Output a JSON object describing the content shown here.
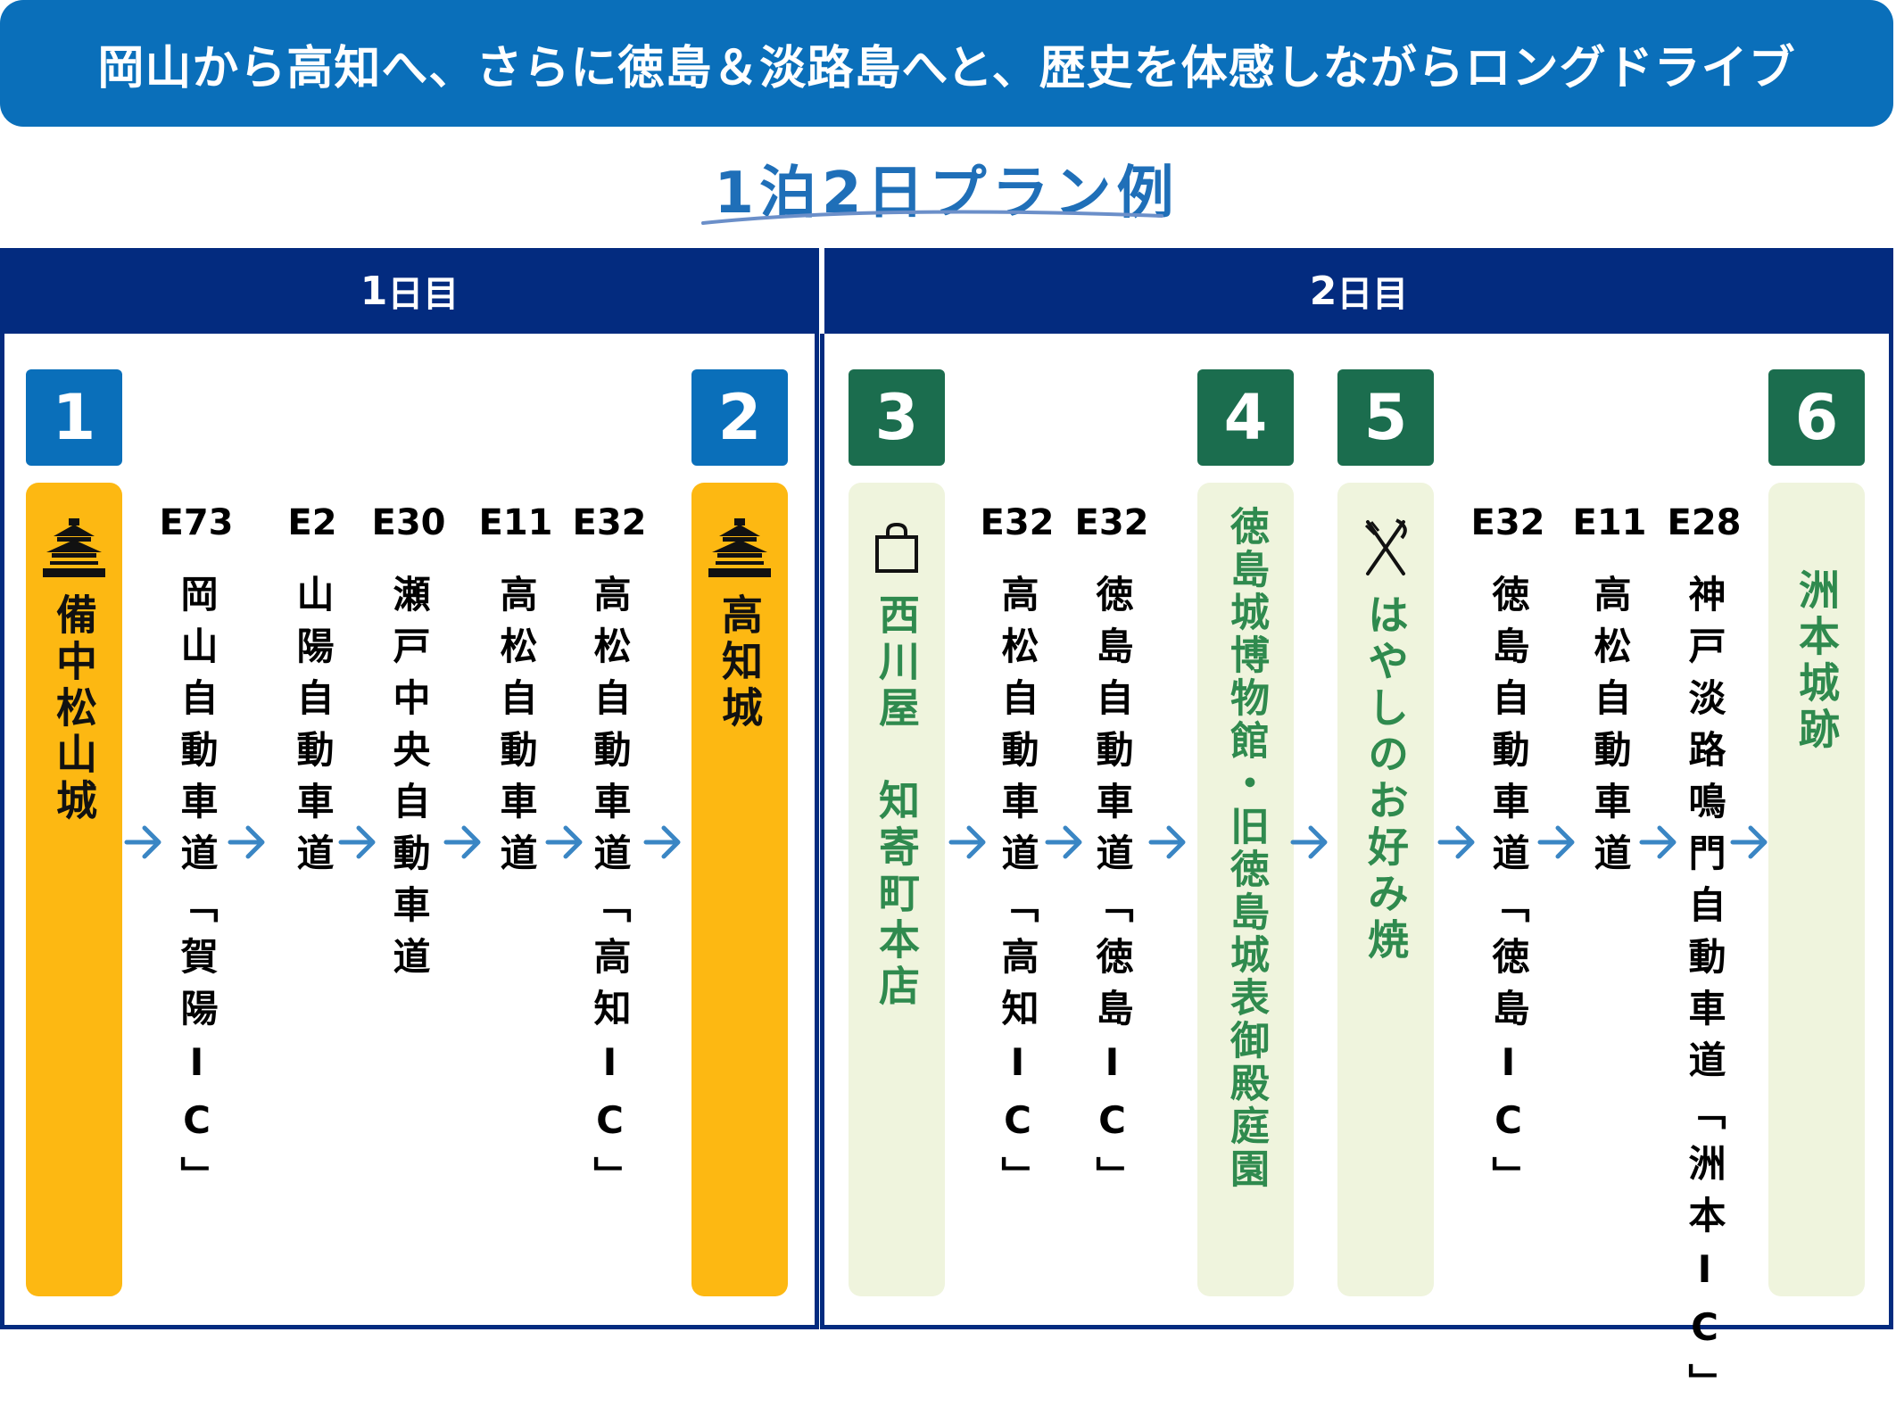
{
  "banner_title": "岡山から高知へ、さらに徳島＆淡路島へと、歴史を体感しながらロングドライブ",
  "plan_title": "1泊2日プラン例",
  "colors": {
    "banner": "#0a6fba",
    "day_header": "#032b7f",
    "castle_spot": "#fdb812",
    "light_spot": "#eff4dd",
    "green_badge": "#1b6d4e",
    "arrow": "#3a86c4"
  },
  "days": [
    {
      "label_num": "1",
      "label_text": "日目"
    },
    {
      "label_num": "2",
      "label_text": "日目"
    }
  ],
  "spots": [
    {
      "num": "1",
      "name": "備中松山城",
      "icon": "castle-icon"
    },
    {
      "num": "2",
      "name": "高知城",
      "icon": "castle-icon"
    },
    {
      "num": "3",
      "name": "西川屋　知寄町本店",
      "icon": "shopping-bag-icon"
    },
    {
      "num": "4",
      "name": "徳島城博物館・旧徳島城表御殿庭園",
      "icon": ""
    },
    {
      "num": "5",
      "name": "はやしのお好み焼",
      "icon": "fork-knife-icon"
    },
    {
      "num": "6",
      "name": "洲本城跡",
      "icon": ""
    }
  ],
  "routes": [
    {
      "code": "E73",
      "name": "岡山自動車道「賀陽IC」"
    },
    {
      "code": "E2",
      "name": "山陽自動車道"
    },
    {
      "code": "E30",
      "name": "瀬戸中央自動車道"
    },
    {
      "code": "E11",
      "name": "高松自動車道"
    },
    {
      "code": "E32",
      "name": "高松自動車道「高知IC」"
    },
    {
      "code": "E32",
      "name": "高松自動車道「高知IC」"
    },
    {
      "code": "E32",
      "name": "徳島自動車道「徳島IC」"
    },
    {
      "code": "E32",
      "name": "徳島自動車道「徳島IC」"
    },
    {
      "code": "E11",
      "name": "高松自動車道"
    },
    {
      "code": "E28",
      "name": "神戸淡路鳴門自動車道「洲本IC」"
    }
  ]
}
